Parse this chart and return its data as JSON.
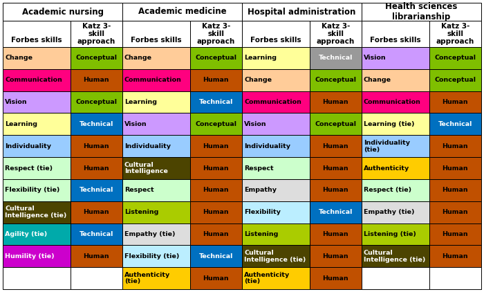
{
  "columns": [
    {
      "domain": "Academic nursing",
      "rows": [
        {
          "skill": "Change",
          "skill_color": "#FFCC99",
          "katz": "Conceptual",
          "katz_color": "#7FBF00",
          "katz_tc": "black",
          "skill_tc": "black"
        },
        {
          "skill": "Communication",
          "skill_color": "#FF007F",
          "katz": "Human",
          "katz_color": "#C05000",
          "katz_tc": "black",
          "skill_tc": "black"
        },
        {
          "skill": "Vision",
          "skill_color": "#CC99FF",
          "katz": "Conceptual",
          "katz_color": "#7FBF00",
          "katz_tc": "black",
          "skill_tc": "black"
        },
        {
          "skill": "Learning",
          "skill_color": "#FFFF99",
          "katz": "Technical",
          "katz_color": "#0070C0",
          "katz_tc": "white",
          "skill_tc": "black"
        },
        {
          "skill": "Individuality",
          "skill_color": "#99CCFF",
          "katz": "Human",
          "katz_color": "#C05000",
          "katz_tc": "black",
          "skill_tc": "black"
        },
        {
          "skill": "Respect (tie)",
          "skill_color": "#CCFFCC",
          "katz": "Human",
          "katz_color": "#C05000",
          "katz_tc": "black",
          "skill_tc": "black"
        },
        {
          "skill": "Flexibility (tie)",
          "skill_color": "#CCFFCC",
          "katz": "Technical",
          "katz_color": "#0070C0",
          "katz_tc": "white",
          "skill_tc": "black"
        },
        {
          "skill": "Cultural\nIntelligence (tie)",
          "skill_color": "#4C4400",
          "katz": "Human",
          "katz_color": "#C05000",
          "katz_tc": "black",
          "skill_tc": "white"
        },
        {
          "skill": "Agility (tie)",
          "skill_color": "#00AAAA",
          "katz": "Technical",
          "katz_color": "#0070C0",
          "katz_tc": "white",
          "skill_tc": "white"
        },
        {
          "skill": "Humility (tie)",
          "skill_color": "#CC00CC",
          "katz": "Human",
          "katz_color": "#C05000",
          "katz_tc": "black",
          "skill_tc": "white"
        },
        {
          "skill": "",
          "skill_color": "#FFFFFF",
          "katz": "",
          "katz_color": "#FFFFFF",
          "katz_tc": "black",
          "skill_tc": "black"
        }
      ]
    },
    {
      "domain": "Academic medicine",
      "rows": [
        {
          "skill": "Change",
          "skill_color": "#FFCC99",
          "katz": "Conceptual",
          "katz_color": "#7FBF00",
          "katz_tc": "black",
          "skill_tc": "black"
        },
        {
          "skill": "Communication",
          "skill_color": "#FF007F",
          "katz": "Human",
          "katz_color": "#C05000",
          "katz_tc": "black",
          "skill_tc": "black"
        },
        {
          "skill": "Learning",
          "skill_color": "#FFFF99",
          "katz": "Technical",
          "katz_color": "#0070C0",
          "katz_tc": "white",
          "skill_tc": "black"
        },
        {
          "skill": "Vision",
          "skill_color": "#CC99FF",
          "katz": "Conceptual",
          "katz_color": "#7FBF00",
          "katz_tc": "black",
          "skill_tc": "black"
        },
        {
          "skill": "Individuality",
          "skill_color": "#99CCFF",
          "katz": "Human",
          "katz_color": "#C05000",
          "katz_tc": "black",
          "skill_tc": "black"
        },
        {
          "skill": "Cultural\nIntelligence",
          "skill_color": "#4C4400",
          "katz": "Human",
          "katz_color": "#C05000",
          "katz_tc": "black",
          "skill_tc": "white"
        },
        {
          "skill": "Respect",
          "skill_color": "#CCFFCC",
          "katz": "Human",
          "katz_color": "#C05000",
          "katz_tc": "black",
          "skill_tc": "black"
        },
        {
          "skill": "Listening",
          "skill_color": "#AACC00",
          "katz": "Human",
          "katz_color": "#C05000",
          "katz_tc": "black",
          "skill_tc": "black"
        },
        {
          "skill": "Empathy (tie)",
          "skill_color": "#DDDDDD",
          "katz": "Human",
          "katz_color": "#C05000",
          "katz_tc": "black",
          "skill_tc": "black"
        },
        {
          "skill": "Flexibility (tie)",
          "skill_color": "#BBEEFF",
          "katz": "Technical",
          "katz_color": "#0070C0",
          "katz_tc": "white",
          "skill_tc": "black"
        },
        {
          "skill": "Authenticity\n(tie)",
          "skill_color": "#FFCC00",
          "katz": "Human",
          "katz_color": "#C05000",
          "katz_tc": "black",
          "skill_tc": "black"
        }
      ]
    },
    {
      "domain": "Hospital administration",
      "rows": [
        {
          "skill": "Learning",
          "skill_color": "#FFFF99",
          "katz": "Technical",
          "katz_color": "#999999",
          "katz_tc": "white",
          "skill_tc": "black"
        },
        {
          "skill": "Change",
          "skill_color": "#FFCC99",
          "katz": "Conceptual",
          "katz_color": "#7FBF00",
          "katz_tc": "black",
          "skill_tc": "black"
        },
        {
          "skill": "Communication",
          "skill_color": "#FF007F",
          "katz": "Human",
          "katz_color": "#C05000",
          "katz_tc": "black",
          "skill_tc": "black"
        },
        {
          "skill": "Vision",
          "skill_color": "#CC99FF",
          "katz": "Conceptual",
          "katz_color": "#7FBF00",
          "katz_tc": "black",
          "skill_tc": "black"
        },
        {
          "skill": "Individuality",
          "skill_color": "#99CCFF",
          "katz": "Human",
          "katz_color": "#C05000",
          "katz_tc": "black",
          "skill_tc": "black"
        },
        {
          "skill": "Respect",
          "skill_color": "#CCFFCC",
          "katz": "Human",
          "katz_color": "#C05000",
          "katz_tc": "black",
          "skill_tc": "black"
        },
        {
          "skill": "Empathy",
          "skill_color": "#DDDDDD",
          "katz": "Human",
          "katz_color": "#C05000",
          "katz_tc": "black",
          "skill_tc": "black"
        },
        {
          "skill": "Flexibility",
          "skill_color": "#BBEEFF",
          "katz": "Technical",
          "katz_color": "#0070C0",
          "katz_tc": "white",
          "skill_tc": "black"
        },
        {
          "skill": "Listening",
          "skill_color": "#AACC00",
          "katz": "Human",
          "katz_color": "#C05000",
          "katz_tc": "black",
          "skill_tc": "black"
        },
        {
          "skill": "Cultural\nIntelligence (tie)",
          "skill_color": "#4C4400",
          "katz": "Human",
          "katz_color": "#C05000",
          "katz_tc": "black",
          "skill_tc": "white"
        },
        {
          "skill": "Authenticity\n(tie)",
          "skill_color": "#FFCC00",
          "katz": "Human",
          "katz_color": "#C05000",
          "katz_tc": "black",
          "skill_tc": "black"
        }
      ]
    },
    {
      "domain": "Health sciences\nlibrarianship",
      "rows": [
        {
          "skill": "Vision",
          "skill_color": "#CC99FF",
          "katz": "Conceptual",
          "katz_color": "#7FBF00",
          "katz_tc": "black",
          "skill_tc": "black"
        },
        {
          "skill": "Change",
          "skill_color": "#FFCC99",
          "katz": "Conceptual",
          "katz_color": "#7FBF00",
          "katz_tc": "black",
          "skill_tc": "black"
        },
        {
          "skill": "Communication",
          "skill_color": "#FF007F",
          "katz": "Human",
          "katz_color": "#C05000",
          "katz_tc": "black",
          "skill_tc": "black"
        },
        {
          "skill": "Learning (tie)",
          "skill_color": "#FFFF99",
          "katz": "Technical",
          "katz_color": "#0070C0",
          "katz_tc": "white",
          "skill_tc": "black"
        },
        {
          "skill": "Individuality\n(tie)",
          "skill_color": "#99CCFF",
          "katz": "Human",
          "katz_color": "#C05000",
          "katz_tc": "black",
          "skill_tc": "black"
        },
        {
          "skill": "Authenticity",
          "skill_color": "#FFCC00",
          "katz": "Human",
          "katz_color": "#C05000",
          "katz_tc": "black",
          "skill_tc": "black"
        },
        {
          "skill": "Respect (tie)",
          "skill_color": "#CCFFCC",
          "katz": "Human",
          "katz_color": "#C05000",
          "katz_tc": "black",
          "skill_tc": "black"
        },
        {
          "skill": "Empathy (tie)",
          "skill_color": "#DDDDDD",
          "katz": "Human",
          "katz_color": "#C05000",
          "katz_tc": "black",
          "skill_tc": "black"
        },
        {
          "skill": "Listening (tie)",
          "skill_color": "#AACC00",
          "katz": "Human",
          "katz_color": "#C05000",
          "katz_tc": "black",
          "skill_tc": "black"
        },
        {
          "skill": "Cultural\nIntelligence (tie)",
          "skill_color": "#4C4400",
          "katz": "Human",
          "katz_color": "#C05000",
          "katz_tc": "black",
          "skill_tc": "white"
        },
        {
          "skill": "",
          "skill_color": "#FFFFFF",
          "katz": "",
          "katz_color": "#FFFFFF",
          "katz_tc": "black",
          "skill_tc": "black"
        }
      ]
    }
  ]
}
